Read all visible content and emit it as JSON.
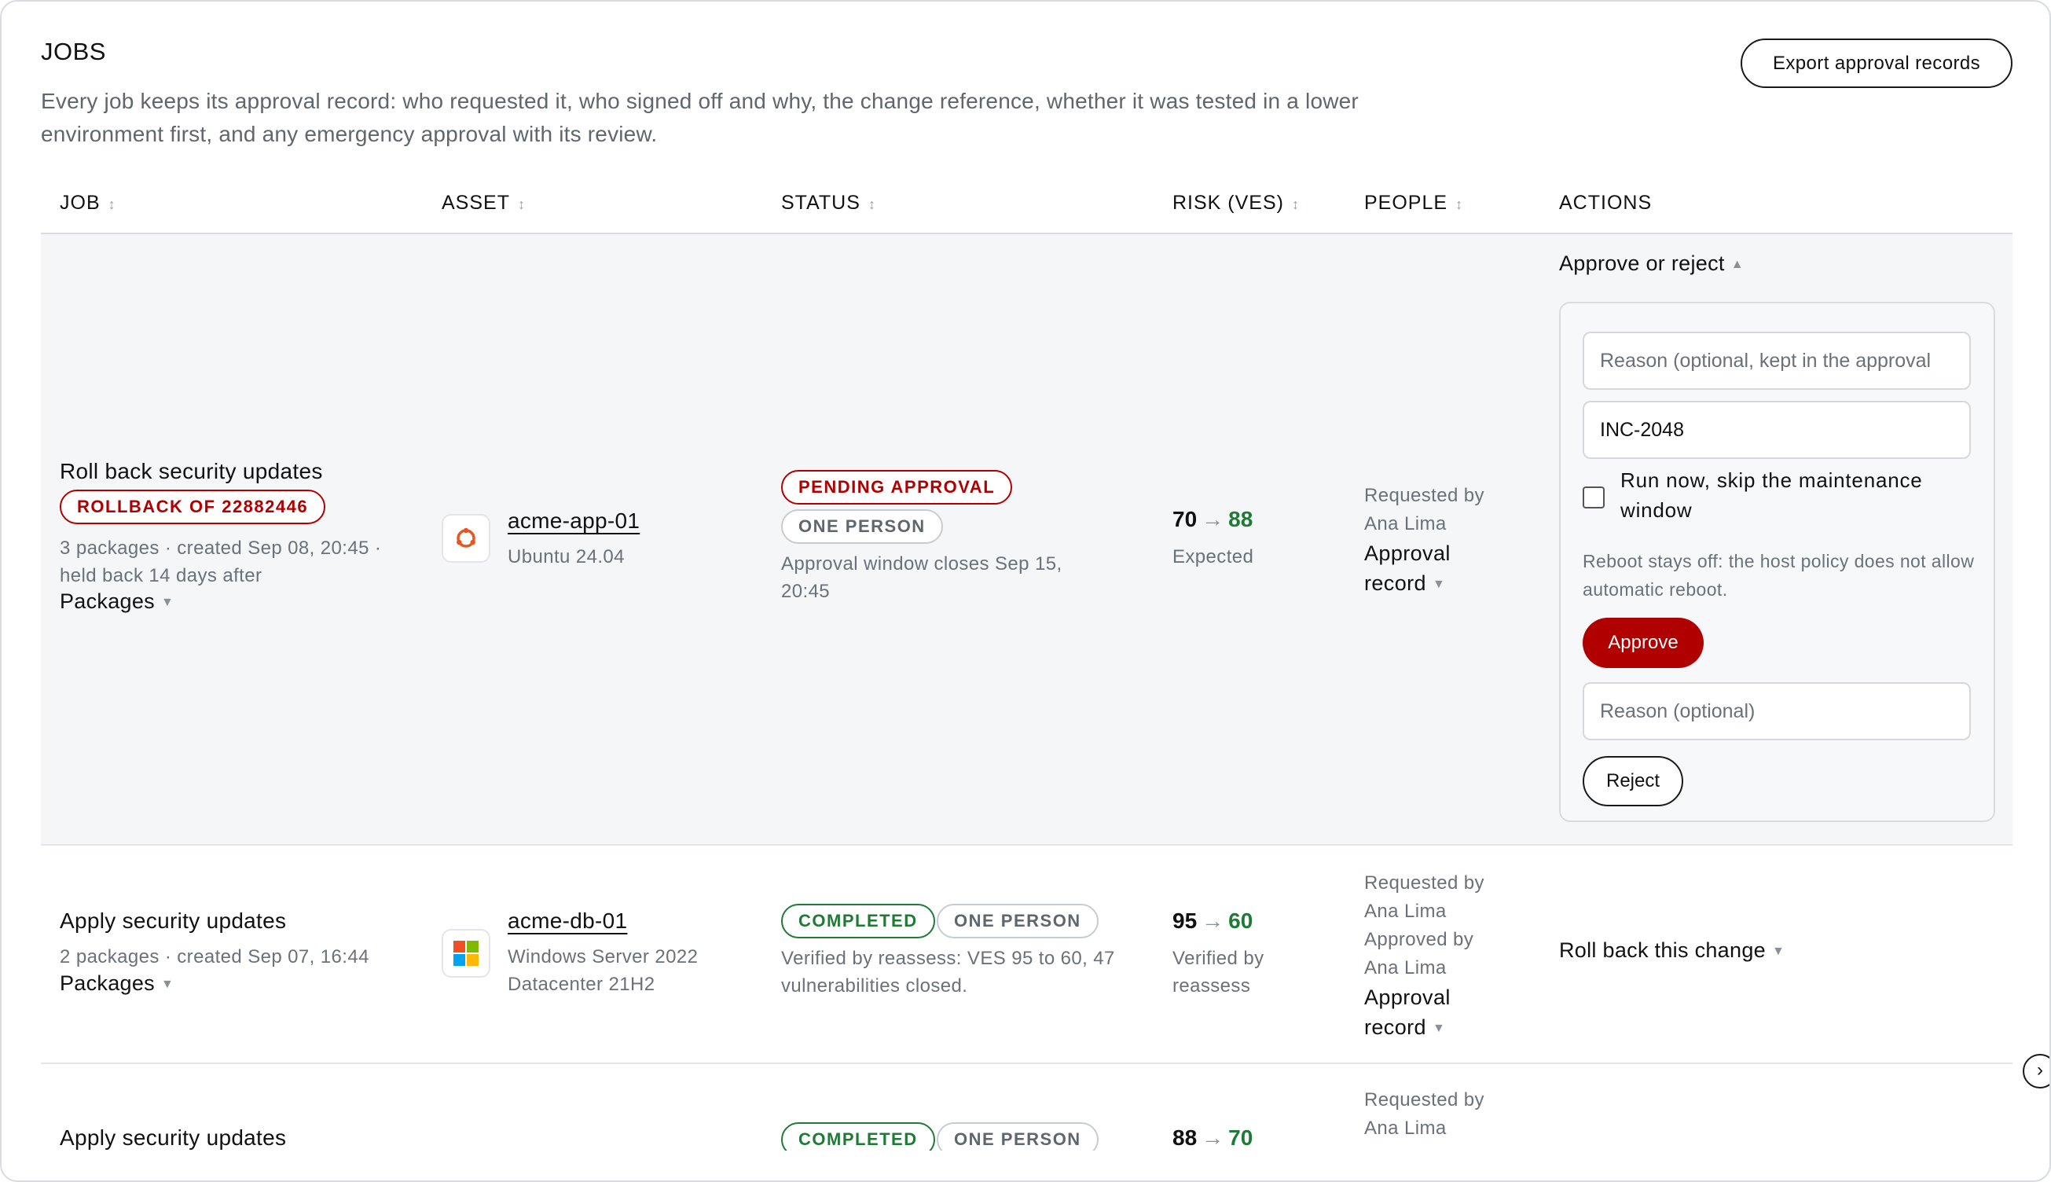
{
  "header": {
    "title": "JOBS",
    "intro": "Every job keeps its approval record: who requested it, who signed off and why, the change reference, whether it was tested in a lower environment first, and any emergency approval with its review.",
    "export_label": "Export approval records"
  },
  "columns": [
    "JOB",
    "ASSET",
    "STATUS",
    "RISK (VES)",
    "PEOPLE",
    "ACTIONS"
  ],
  "sort_icon": "↕",
  "rows": [
    {
      "job_title": "Roll back security updates",
      "badge": "ROLLBACK OF 22882446",
      "meta": "3 packages · created Sep 08, 20:45 · held back 14 days after",
      "packages_label": "Packages",
      "asset_name": "acme-app-01",
      "asset_os": "Ubuntu 24.04",
      "asset_icon": "ubuntu-icon",
      "status_primary": "PENDING APPROVAL",
      "status_secondary": "ONE PERSON",
      "status_note": "Approval window closes Sep 15, 20:45",
      "risk_before": "70",
      "risk_after": "88",
      "risk_note": "Expected",
      "people_lines": [
        "Requested by",
        "Ana Lima"
      ],
      "approval_record_label": "Approval record",
      "actions": {
        "toggle_label": "Approve or reject",
        "reason_placeholder": "Reason (optional, kept in the approval",
        "change_ref_value": "INC-2048",
        "skip_window_label": "Run now, skip the maintenance window",
        "reboot_note": "Reboot stays off: the host policy does not allow automatic reboot.",
        "approve_label": "Approve",
        "reject_reason_placeholder": "Reason (optional)",
        "reject_label": "Reject"
      }
    },
    {
      "job_title": "Apply security updates",
      "meta": "2 packages · created Sep 07, 16:44",
      "packages_label": "Packages",
      "asset_name": "acme-db-01",
      "asset_os": "Windows Server 2022 Datacenter 21H2",
      "asset_icon": "windows-icon",
      "status_primary": "COMPLETED",
      "status_secondary": "ONE PERSON",
      "status_note": "Verified by reassess: VES 95 to 60, 47 vulnerabilities closed.",
      "risk_before": "95",
      "risk_after": "60",
      "risk_note": "Verified by reassess",
      "people_lines": [
        "Requested by",
        "Ana Lima",
        "Approved by",
        "Ana Lima"
      ],
      "approval_record_label": "Approval record",
      "actions": {
        "rollback_label": "Roll back this change"
      }
    },
    {
      "job_title": "Apply security updates",
      "status_primary": "COMPLETED",
      "status_secondary": "ONE PERSON",
      "risk_before": "88",
      "risk_after": "70",
      "people_lines": [
        "Requested by",
        "Ana Lima"
      ]
    }
  ],
  "colors": {
    "danger": "#b00000",
    "success": "#1f7a36",
    "muted": "#6a7178"
  }
}
